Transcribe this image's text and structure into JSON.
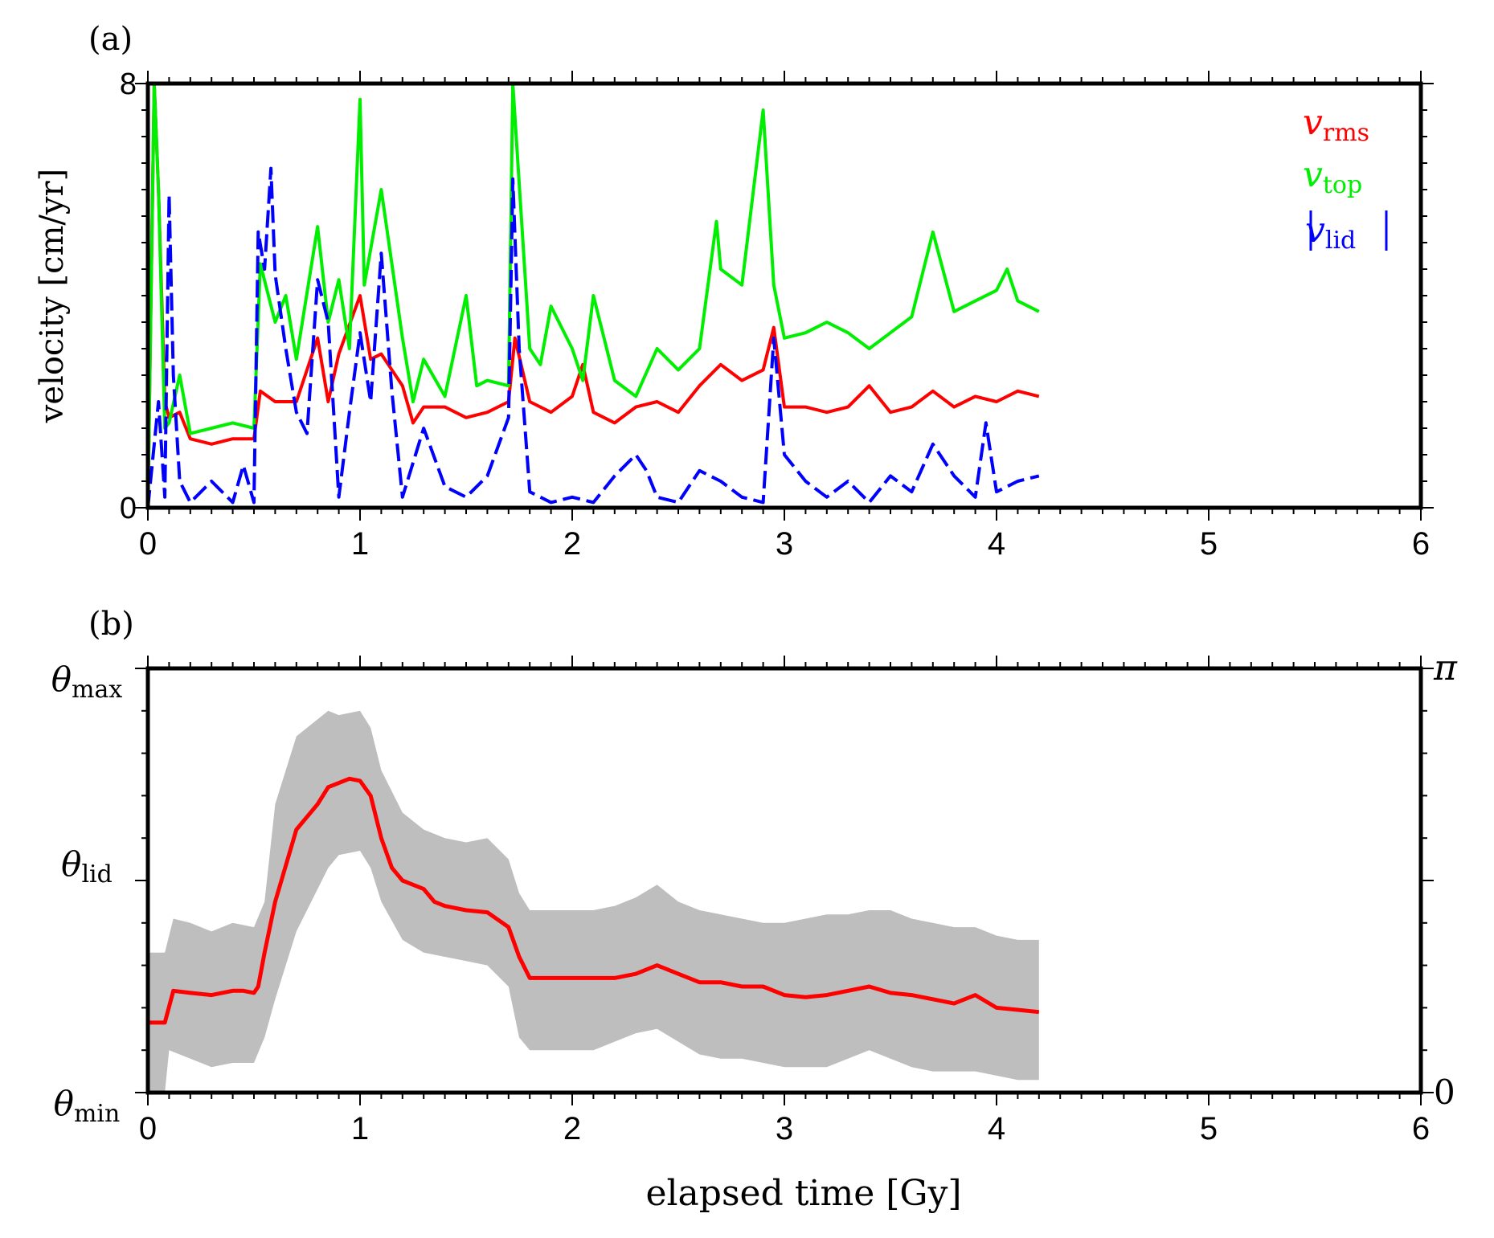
{
  "chart_data": [
    {
      "panel": "(a)",
      "type": "line",
      "xlabel": "",
      "ylabel": "velocity [cm/yr]",
      "xlim": [
        0,
        6
      ],
      "ylim": [
        0,
        8
      ],
      "x_ticks": [
        "0",
        "1",
        "2",
        "3",
        "4",
        "5",
        "6"
      ],
      "y_ticks": [
        "0",
        "8"
      ],
      "legend_position": "top-right",
      "series": [
        {
          "name": "v_rms",
          "legend_base": "v",
          "legend_sub": "rms",
          "color": "#ff0000",
          "dashed": false,
          "x": [
            0,
            0.03,
            0.05,
            0.08,
            0.1,
            0.15,
            0.2,
            0.3,
            0.4,
            0.5,
            0.53,
            0.6,
            0.7,
            0.8,
            0.85,
            0.9,
            1.0,
            1.05,
            1.1,
            1.2,
            1.25,
            1.3,
            1.4,
            1.5,
            1.6,
            1.7,
            1.73,
            1.8,
            1.9,
            2.0,
            2.05,
            2.1,
            2.2,
            2.3,
            2.4,
            2.5,
            2.6,
            2.7,
            2.8,
            2.9,
            2.95,
            3.0,
            3.1,
            3.2,
            3.3,
            3.4,
            3.5,
            3.6,
            3.7,
            3.8,
            3.9,
            4.0,
            4.1,
            4.2
          ],
          "y": [
            0,
            8,
            6,
            2,
            1.7,
            1.8,
            1.3,
            1.2,
            1.3,
            1.3,
            2.2,
            2.0,
            2.0,
            3.2,
            2.0,
            2.9,
            4.0,
            2.8,
            2.9,
            2.3,
            1.6,
            1.9,
            1.9,
            1.7,
            1.8,
            2.0,
            3.2,
            2.0,
            1.8,
            2.1,
            2.7,
            1.8,
            1.6,
            1.9,
            2.0,
            1.8,
            2.3,
            2.7,
            2.4,
            2.6,
            3.4,
            1.9,
            1.9,
            1.8,
            1.9,
            2.3,
            1.8,
            1.9,
            2.2,
            1.9,
            2.1,
            2.0,
            2.2,
            2.1
          ]
        },
        {
          "name": "v_top",
          "legend_base": "v",
          "legend_sub": "top",
          "color": "#00ee00",
          "dashed": false,
          "x": [
            0,
            0.03,
            0.05,
            0.08,
            0.1,
            0.15,
            0.2,
            0.3,
            0.4,
            0.5,
            0.53,
            0.6,
            0.65,
            0.7,
            0.8,
            0.85,
            0.9,
            0.95,
            1.0,
            1.02,
            1.1,
            1.2,
            1.25,
            1.3,
            1.4,
            1.5,
            1.55,
            1.6,
            1.7,
            1.72,
            1.8,
            1.85,
            1.9,
            2.0,
            2.05,
            2.1,
            2.2,
            2.3,
            2.4,
            2.5,
            2.6,
            2.68,
            2.7,
            2.8,
            2.9,
            2.95,
            3.0,
            3.1,
            3.2,
            3.3,
            3.4,
            3.5,
            3.6,
            3.7,
            3.8,
            3.9,
            4.0,
            4.05,
            4.1,
            4.2
          ],
          "y": [
            0,
            8,
            6,
            1.5,
            1.6,
            2.5,
            1.4,
            1.5,
            1.6,
            1.5,
            4.6,
            3.5,
            4.0,
            2.8,
            5.3,
            3.5,
            4.3,
            3.0,
            7.7,
            4.2,
            6.0,
            3.2,
            2.0,
            2.8,
            2.1,
            4.0,
            2.3,
            2.4,
            2.3,
            8.0,
            3.0,
            2.7,
            3.8,
            3.0,
            2.4,
            4.0,
            2.4,
            2.1,
            3.0,
            2.6,
            3.0,
            5.4,
            4.5,
            4.2,
            7.5,
            4.2,
            3.2,
            3.3,
            3.5,
            3.3,
            3.0,
            3.3,
            3.6,
            5.2,
            3.7,
            3.9,
            4.1,
            4.5,
            3.9,
            3.7
          ]
        },
        {
          "name": "|v_lid|",
          "legend_base": "v",
          "legend_sub": "lid",
          "color": "#0000ff",
          "dashed": true,
          "x": [
            0,
            0.05,
            0.08,
            0.1,
            0.12,
            0.15,
            0.2,
            0.3,
            0.4,
            0.45,
            0.5,
            0.52,
            0.55,
            0.58,
            0.6,
            0.65,
            0.7,
            0.75,
            0.8,
            0.85,
            0.9,
            0.95,
            1.0,
            1.05,
            1.1,
            1.15,
            1.2,
            1.3,
            1.4,
            1.5,
            1.6,
            1.7,
            1.72,
            1.75,
            1.8,
            1.9,
            2.0,
            2.1,
            2.2,
            2.3,
            2.35,
            2.4,
            2.5,
            2.6,
            2.7,
            2.8,
            2.9,
            2.95,
            3.0,
            3.1,
            3.2,
            3.3,
            3.4,
            3.5,
            3.6,
            3.7,
            3.8,
            3.9,
            3.95,
            4.0,
            4.1,
            4.2
          ],
          "y": [
            0,
            2,
            0.2,
            5.9,
            2.5,
            0.5,
            0.1,
            0.5,
            0.1,
            0.8,
            0.1,
            5.2,
            4.5,
            6.4,
            4.4,
            3.0,
            1.8,
            1.4,
            4.3,
            3.5,
            0.2,
            1.8,
            3.3,
            2.0,
            4.8,
            2.2,
            0.2,
            1.5,
            0.4,
            0.2,
            0.6,
            1.7,
            6.2,
            3.0,
            0.3,
            0.1,
            0.2,
            0.1,
            0.6,
            1.0,
            0.7,
            0.2,
            0.1,
            0.7,
            0.5,
            0.2,
            0.1,
            3.2,
            1.0,
            0.5,
            0.2,
            0.5,
            0.1,
            0.6,
            0.3,
            1.2,
            0.6,
            0.2,
            1.6,
            0.3,
            0.5,
            0.6
          ]
        }
      ]
    },
    {
      "panel": "(b)",
      "type": "area",
      "xlabel": "elapsed time [Gy]",
      "ylabel": "",
      "xlim": [
        0,
        6
      ],
      "ylim": [
        0,
        1
      ],
      "x_ticks": [
        "0",
        "1",
        "2",
        "3",
        "4",
        "5",
        "6"
      ],
      "y_ticks_left": [
        {
          "value": 0,
          "base": "θ",
          "sub": "min"
        },
        {
          "value": 0.5,
          "base": "θ",
          "sub": "lid"
        },
        {
          "value": 1,
          "base": "θ",
          "sub": "max"
        }
      ],
      "y_ticks_right": [
        {
          "value": 0,
          "label": "0"
        },
        {
          "value": 1,
          "label": "π"
        }
      ],
      "band_color": "#bebebe",
      "line_color": "#ff0000",
      "mean": {
        "x": [
          0,
          0.08,
          0.12,
          0.2,
          0.3,
          0.4,
          0.45,
          0.5,
          0.52,
          0.55,
          0.6,
          0.7,
          0.8,
          0.85,
          0.9,
          0.95,
          1.0,
          1.05,
          1.1,
          1.15,
          1.2,
          1.3,
          1.35,
          1.4,
          1.5,
          1.6,
          1.7,
          1.75,
          1.8,
          1.9,
          2.0,
          2.1,
          2.2,
          2.3,
          2.4,
          2.5,
          2.6,
          2.7,
          2.8,
          2.9,
          3.0,
          3.1,
          3.2,
          3.3,
          3.4,
          3.5,
          3.6,
          3.7,
          3.8,
          3.9,
          4.0,
          4.1,
          4.2
        ],
        "y": [
          0.165,
          0.165,
          0.24,
          0.235,
          0.23,
          0.24,
          0.24,
          0.235,
          0.25,
          0.33,
          0.45,
          0.62,
          0.68,
          0.72,
          0.73,
          0.74,
          0.735,
          0.7,
          0.6,
          0.53,
          0.5,
          0.48,
          0.45,
          0.44,
          0.43,
          0.425,
          0.39,
          0.32,
          0.27,
          0.27,
          0.27,
          0.27,
          0.27,
          0.28,
          0.3,
          0.28,
          0.26,
          0.26,
          0.25,
          0.25,
          0.23,
          0.225,
          0.23,
          0.24,
          0.25,
          0.235,
          0.23,
          0.22,
          0.21,
          0.23,
          0.2,
          0.195,
          0.19
        ]
      },
      "upper": {
        "x": [
          0,
          0.08,
          0.12,
          0.2,
          0.3,
          0.4,
          0.5,
          0.55,
          0.6,
          0.7,
          0.8,
          0.85,
          0.9,
          1.0,
          1.05,
          1.1,
          1.2,
          1.3,
          1.4,
          1.5,
          1.6,
          1.7,
          1.75,
          1.8,
          1.9,
          2.0,
          2.1,
          2.2,
          2.3,
          2.4,
          2.5,
          2.6,
          2.7,
          2.8,
          2.9,
          3.0,
          3.1,
          3.2,
          3.3,
          3.4,
          3.5,
          3.6,
          3.7,
          3.8,
          3.9,
          4.0,
          4.1,
          4.2
        ],
        "y": [
          0.33,
          0.33,
          0.41,
          0.4,
          0.38,
          0.4,
          0.39,
          0.45,
          0.68,
          0.84,
          0.88,
          0.9,
          0.89,
          0.9,
          0.86,
          0.76,
          0.66,
          0.62,
          0.6,
          0.59,
          0.6,
          0.55,
          0.47,
          0.43,
          0.43,
          0.43,
          0.43,
          0.44,
          0.46,
          0.49,
          0.45,
          0.43,
          0.42,
          0.41,
          0.4,
          0.4,
          0.41,
          0.42,
          0.42,
          0.43,
          0.43,
          0.41,
          0.4,
          0.39,
          0.39,
          0.37,
          0.36,
          0.36
        ]
      },
      "lower": {
        "x": [
          0,
          0.08,
          0.1,
          0.2,
          0.3,
          0.4,
          0.5,
          0.55,
          0.6,
          0.7,
          0.8,
          0.85,
          0.9,
          1.0,
          1.05,
          1.1,
          1.2,
          1.3,
          1.4,
          1.5,
          1.6,
          1.7,
          1.75,
          1.8,
          1.9,
          2.0,
          2.1,
          2.2,
          2.3,
          2.4,
          2.5,
          2.6,
          2.7,
          2.8,
          2.9,
          3.0,
          3.1,
          3.2,
          3.3,
          3.4,
          3.5,
          3.6,
          3.7,
          3.8,
          3.9,
          4.0,
          4.1,
          4.2
        ],
        "y": [
          0,
          0,
          0.1,
          0.08,
          0.06,
          0.07,
          0.07,
          0.13,
          0.22,
          0.38,
          0.48,
          0.53,
          0.56,
          0.57,
          0.53,
          0.45,
          0.36,
          0.33,
          0.32,
          0.31,
          0.3,
          0.25,
          0.13,
          0.1,
          0.1,
          0.1,
          0.1,
          0.12,
          0.14,
          0.15,
          0.12,
          0.09,
          0.08,
          0.08,
          0.07,
          0.06,
          0.06,
          0.06,
          0.08,
          0.1,
          0.08,
          0.06,
          0.05,
          0.05,
          0.05,
          0.04,
          0.03,
          0.03
        ]
      }
    }
  ]
}
